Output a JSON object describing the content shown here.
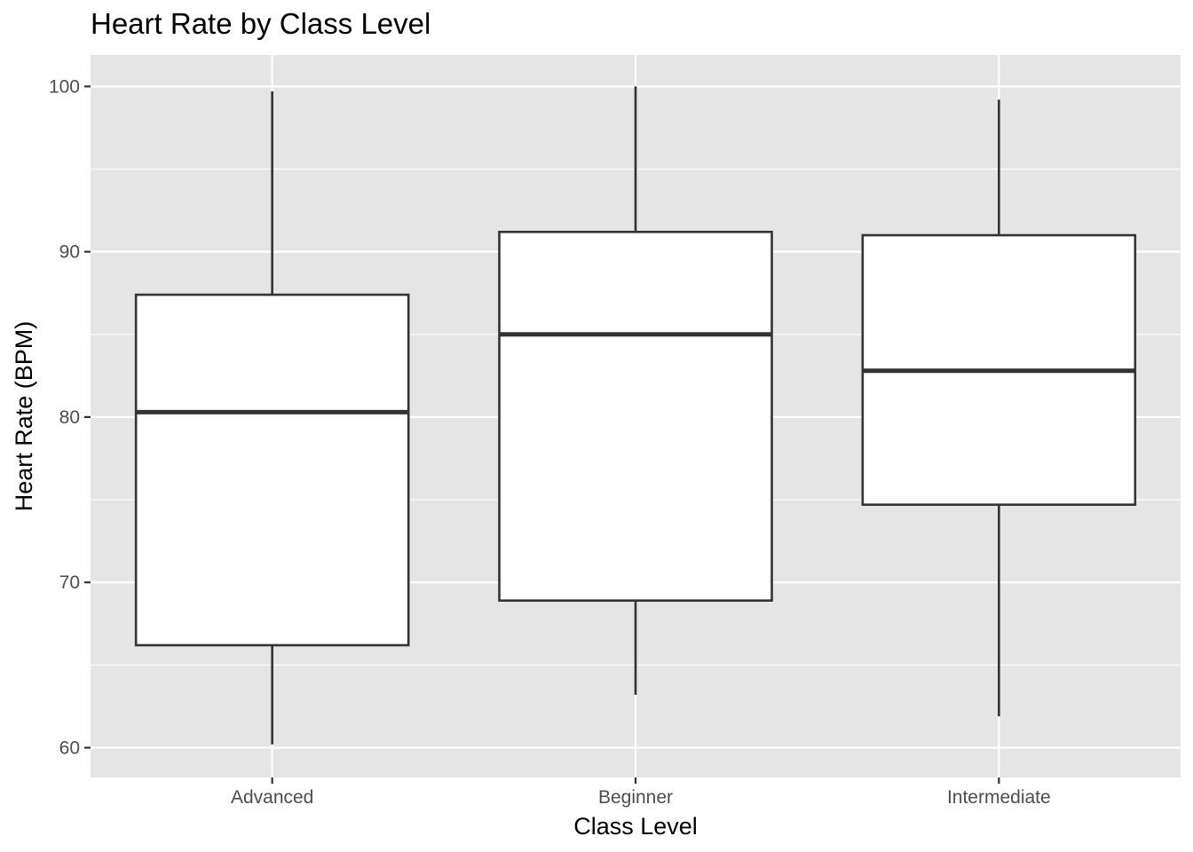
{
  "chart_data": {
    "type": "boxplot",
    "title": "Heart Rate by Class Level",
    "xlabel": "Class Level",
    "ylabel": "Heart Rate (BPM)",
    "categories": [
      "Advanced",
      "Beginner",
      "Intermediate"
    ],
    "boxes": [
      {
        "category": "Advanced",
        "min": 60.2,
        "q1": 66.2,
        "median": 80.3,
        "q3": 87.4,
        "max": 99.7
      },
      {
        "category": "Beginner",
        "min": 63.2,
        "q1": 68.9,
        "median": 85.0,
        "q3": 91.2,
        "max": 100.0
      },
      {
        "category": "Intermediate",
        "min": 61.9,
        "q1": 74.7,
        "median": 82.8,
        "q3": 91.0,
        "max": 99.2
      }
    ],
    "yticks": [
      60,
      70,
      80,
      90,
      100
    ],
    "ylim": [
      58.2,
      101.9
    ],
    "grid": true,
    "legend": "none",
    "colors": {
      "panel": "#e5e5e5",
      "grid": "#ffffff",
      "box_fill": "#ffffff",
      "box_stroke": "#333333",
      "tick_text": "#4d4d4d"
    }
  }
}
